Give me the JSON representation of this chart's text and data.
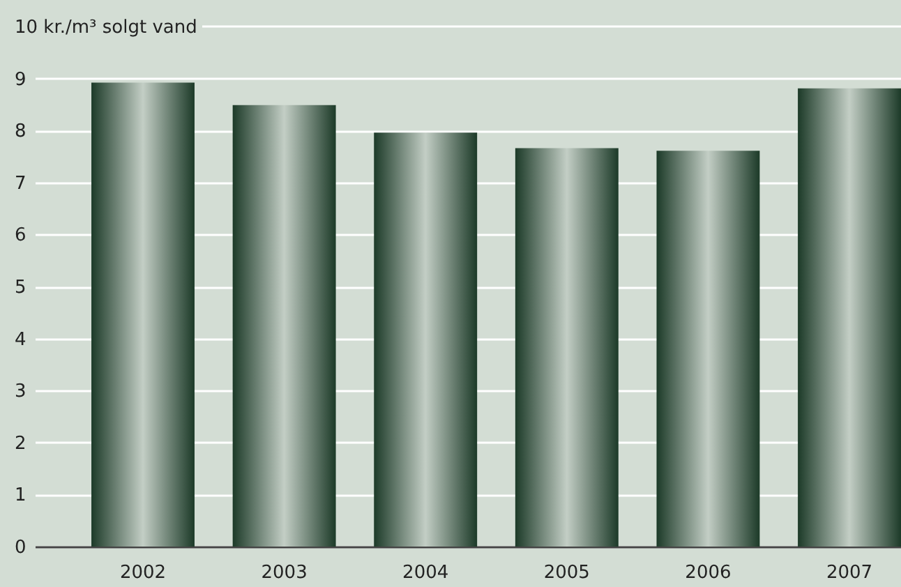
{
  "chart_data": {
    "type": "bar",
    "categories": [
      "2002",
      "2003",
      "2004",
      "2005",
      "2006",
      "2007"
    ],
    "values": [
      8.92,
      8.49,
      7.96,
      7.66,
      7.61,
      8.81
    ],
    "color": "#1c3a28",
    "ylim": [
      0,
      10
    ],
    "yticks": [
      0,
      1,
      2,
      3,
      4,
      5,
      6,
      7,
      8,
      9,
      {
        "value": 10,
        "label": "10 kr./m³ solgt vand"
      }
    ],
    "grid": "y"
  }
}
